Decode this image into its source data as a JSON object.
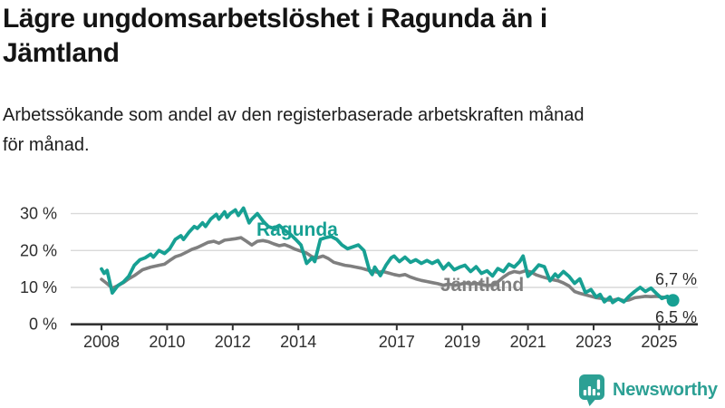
{
  "title": {
    "line1": "Lägre ungdomsarbetslöshet i Ragunda än i",
    "line2": "Jämtland"
  },
  "subtitle": {
    "line1": "Arbetssökande som andel av den registerbaserade arbetskraften månad",
    "line2": "för månad."
  },
  "branding": {
    "name": "Newsworthy",
    "icon": "newsworthy-speech-bubble-bar-chart"
  },
  "colors": {
    "ragunda_line": "#17a093",
    "jamtland_line": "#7f7f7f",
    "gridline": "#d9d9d9",
    "axis": "#333333",
    "title_text": "#141414",
    "tick_text": "#2e2e2e",
    "logo": "#2ca094",
    "background": "#ffffff"
  },
  "chart_data": {
    "type": "line",
    "title": "Lägre ungdomsarbetslöshet i Ragunda än i Jämtland",
    "subtitle": "Arbetssökande som andel av den registerbaserade arbetskraften månad för månad.",
    "xlabel": "",
    "ylabel": "",
    "unit": "%",
    "grid": "horizontal",
    "legend_position": "inline-labels",
    "xlim": [
      2007.6,
      2026.3
    ],
    "ylim": [
      0,
      33
    ],
    "x_ticks": [
      2008,
      2010,
      2012,
      2014,
      2017,
      2019,
      2021,
      2023,
      2025
    ],
    "y_ticks": [
      {
        "value": 0,
        "label": "0 %"
      },
      {
        "value": 10,
        "label": "10 %"
      },
      {
        "value": 20,
        "label": "20 %"
      },
      {
        "value": 30,
        "label": "30 %"
      }
    ],
    "series": [
      {
        "name": "Ragunda",
        "color": "#17a093",
        "end_label": "6,5 %",
        "end_value": 6.5,
        "end_marker": "dot",
        "points": [
          [
            2008.0,
            15.0
          ],
          [
            2008.08,
            13.8
          ],
          [
            2008.17,
            14.6
          ],
          [
            2008.33,
            8.5
          ],
          [
            2008.5,
            10.5
          ],
          [
            2008.67,
            11.5
          ],
          [
            2008.83,
            13.0
          ],
          [
            2009.0,
            16.0
          ],
          [
            2009.17,
            17.5
          ],
          [
            2009.33,
            18.0
          ],
          [
            2009.5,
            19.0
          ],
          [
            2009.58,
            18.2
          ],
          [
            2009.75,
            20.0
          ],
          [
            2009.92,
            19.2
          ],
          [
            2010.08,
            20.5
          ],
          [
            2010.25,
            23.0
          ],
          [
            2010.42,
            24.0
          ],
          [
            2010.5,
            23.0
          ],
          [
            2010.67,
            25.0
          ],
          [
            2010.83,
            26.5
          ],
          [
            2010.92,
            26.0
          ],
          [
            2011.08,
            27.5
          ],
          [
            2011.17,
            26.5
          ],
          [
            2011.33,
            28.5
          ],
          [
            2011.5,
            29.8
          ],
          [
            2011.58,
            28.5
          ],
          [
            2011.75,
            30.5
          ],
          [
            2011.83,
            29.0
          ],
          [
            2011.92,
            30.0
          ],
          [
            2012.08,
            31.0
          ],
          [
            2012.17,
            29.5
          ],
          [
            2012.33,
            31.5
          ],
          [
            2012.5,
            27.5
          ],
          [
            2012.58,
            28.5
          ],
          [
            2012.75,
            30.0
          ],
          [
            2012.92,
            28.0
          ],
          [
            2013.08,
            26.5
          ],
          [
            2013.25,
            26.0
          ],
          [
            2013.42,
            26.8
          ],
          [
            2013.58,
            25.5
          ],
          [
            2013.75,
            24.5
          ],
          [
            2013.92,
            23.0
          ],
          [
            2014.08,
            21.5
          ],
          [
            2014.25,
            16.5
          ],
          [
            2014.42,
            18.0
          ],
          [
            2014.5,
            17.0
          ],
          [
            2014.67,
            23.0
          ],
          [
            2014.83,
            23.5
          ],
          [
            2015.0,
            23.8
          ],
          [
            2015.17,
            23.0
          ],
          [
            2015.33,
            21.5
          ],
          [
            2015.5,
            20.5
          ],
          [
            2015.67,
            21.0
          ],
          [
            2015.83,
            21.5
          ],
          [
            2016.0,
            20.0
          ],
          [
            2016.17,
            14.5
          ],
          [
            2016.25,
            13.5
          ],
          [
            2016.33,
            15.5
          ],
          [
            2016.5,
            13.2
          ],
          [
            2016.67,
            16.0
          ],
          [
            2016.83,
            18.0
          ],
          [
            2016.92,
            18.5
          ],
          [
            2017.08,
            17.0
          ],
          [
            2017.25,
            18.2
          ],
          [
            2017.42,
            16.8
          ],
          [
            2017.58,
            17.5
          ],
          [
            2017.75,
            16.5
          ],
          [
            2017.92,
            17.3
          ],
          [
            2018.08,
            16.5
          ],
          [
            2018.25,
            17.3
          ],
          [
            2018.42,
            15.0
          ],
          [
            2018.58,
            16.5
          ],
          [
            2018.75,
            14.8
          ],
          [
            2018.92,
            15.5
          ],
          [
            2019.08,
            16.0
          ],
          [
            2019.25,
            14.3
          ],
          [
            2019.42,
            15.6
          ],
          [
            2019.58,
            13.8
          ],
          [
            2019.75,
            14.5
          ],
          [
            2019.92,
            13.1
          ],
          [
            2020.08,
            15.1
          ],
          [
            2020.25,
            14.3
          ],
          [
            2020.42,
            16.3
          ],
          [
            2020.58,
            15.5
          ],
          [
            2020.75,
            17.0
          ],
          [
            2020.85,
            18.5
          ],
          [
            2021.0,
            13.0
          ],
          [
            2021.17,
            14.5
          ],
          [
            2021.33,
            16.1
          ],
          [
            2021.5,
            15.6
          ],
          [
            2021.67,
            11.8
          ],
          [
            2021.83,
            13.6
          ],
          [
            2021.92,
            12.8
          ],
          [
            2022.08,
            14.3
          ],
          [
            2022.25,
            13.0
          ],
          [
            2022.42,
            11.1
          ],
          [
            2022.58,
            12.3
          ],
          [
            2022.75,
            8.6
          ],
          [
            2022.92,
            9.4
          ],
          [
            2023.08,
            7.4
          ],
          [
            2023.2,
            8.1
          ],
          [
            2023.33,
            6.1
          ],
          [
            2023.5,
            7.4
          ],
          [
            2023.58,
            5.9
          ],
          [
            2023.75,
            6.9
          ],
          [
            2023.92,
            6.1
          ],
          [
            2024.08,
            7.6
          ],
          [
            2024.25,
            8.9
          ],
          [
            2024.42,
            10.0
          ],
          [
            2024.58,
            8.9
          ],
          [
            2024.75,
            9.8
          ],
          [
            2024.92,
            8.3
          ],
          [
            2025.08,
            7.0
          ],
          [
            2025.25,
            7.6
          ],
          [
            2025.33,
            6.4
          ],
          [
            2025.42,
            6.5
          ]
        ]
      },
      {
        "name": "Jämtland",
        "color": "#7f7f7f",
        "end_label": "6,7 %",
        "end_value": 6.7,
        "end_marker": "none",
        "points": [
          [
            2008.0,
            12.2
          ],
          [
            2008.17,
            11.0
          ],
          [
            2008.33,
            9.8
          ],
          [
            2008.5,
            10.5
          ],
          [
            2008.67,
            11.3
          ],
          [
            2008.83,
            12.3
          ],
          [
            2009.0,
            13.2
          ],
          [
            2009.25,
            14.8
          ],
          [
            2009.5,
            15.5
          ],
          [
            2009.75,
            16.0
          ],
          [
            2009.92,
            16.3
          ],
          [
            2010.08,
            17.3
          ],
          [
            2010.25,
            18.3
          ],
          [
            2010.42,
            18.8
          ],
          [
            2010.58,
            19.5
          ],
          [
            2010.75,
            20.3
          ],
          [
            2010.92,
            20.8
          ],
          [
            2011.08,
            21.5
          ],
          [
            2011.25,
            22.2
          ],
          [
            2011.42,
            22.5
          ],
          [
            2011.58,
            22.0
          ],
          [
            2011.75,
            22.8
          ],
          [
            2011.92,
            23.0
          ],
          [
            2012.08,
            23.2
          ],
          [
            2012.25,
            23.5
          ],
          [
            2012.42,
            22.5
          ],
          [
            2012.58,
            21.5
          ],
          [
            2012.75,
            22.5
          ],
          [
            2012.92,
            22.7
          ],
          [
            2013.08,
            22.4
          ],
          [
            2013.25,
            21.8
          ],
          [
            2013.42,
            21.3
          ],
          [
            2013.58,
            21.6
          ],
          [
            2013.75,
            21.0
          ],
          [
            2013.92,
            20.3
          ],
          [
            2014.08,
            19.8
          ],
          [
            2014.25,
            19.3
          ],
          [
            2014.42,
            18.3
          ],
          [
            2014.58,
            18.0
          ],
          [
            2014.75,
            18.5
          ],
          [
            2014.92,
            17.8
          ],
          [
            2015.08,
            16.8
          ],
          [
            2015.25,
            16.4
          ],
          [
            2015.42,
            16.0
          ],
          [
            2015.58,
            15.8
          ],
          [
            2015.75,
            15.5
          ],
          [
            2015.92,
            15.2
          ],
          [
            2016.08,
            14.8
          ],
          [
            2016.25,
            14.4
          ],
          [
            2016.42,
            14.1
          ],
          [
            2016.58,
            14.3
          ],
          [
            2016.75,
            13.9
          ],
          [
            2016.92,
            13.5
          ],
          [
            2017.08,
            13.2
          ],
          [
            2017.25,
            13.5
          ],
          [
            2017.42,
            12.8
          ],
          [
            2017.58,
            12.3
          ],
          [
            2017.75,
            11.9
          ],
          [
            2017.92,
            11.6
          ],
          [
            2018.08,
            11.3
          ],
          [
            2018.25,
            11.0
          ],
          [
            2018.42,
            10.6
          ],
          [
            2018.58,
            10.9
          ],
          [
            2018.75,
            10.6
          ],
          [
            2018.92,
            10.8
          ],
          [
            2019.08,
            11.2
          ],
          [
            2019.25,
            10.9
          ],
          [
            2019.42,
            11.1
          ],
          [
            2019.58,
            10.8
          ],
          [
            2019.75,
            10.5
          ],
          [
            2019.92,
            10.7
          ],
          [
            2020.08,
            11.5
          ],
          [
            2020.25,
            12.8
          ],
          [
            2020.42,
            13.8
          ],
          [
            2020.58,
            14.3
          ],
          [
            2020.75,
            14.0
          ],
          [
            2020.92,
            14.5
          ],
          [
            2021.08,
            14.2
          ],
          [
            2021.25,
            13.4
          ],
          [
            2021.42,
            12.9
          ],
          [
            2021.58,
            12.5
          ],
          [
            2021.75,
            12.1
          ],
          [
            2021.92,
            11.8
          ],
          [
            2022.08,
            11.2
          ],
          [
            2022.25,
            10.4
          ],
          [
            2022.42,
            8.9
          ],
          [
            2022.58,
            8.4
          ],
          [
            2022.75,
            8.0
          ],
          [
            2022.92,
            7.6
          ],
          [
            2023.08,
            7.2
          ],
          [
            2023.25,
            7.0
          ],
          [
            2023.42,
            6.6
          ],
          [
            2023.58,
            6.5
          ],
          [
            2023.75,
            6.9
          ],
          [
            2023.92,
            6.4
          ],
          [
            2024.08,
            6.6
          ],
          [
            2024.25,
            7.2
          ],
          [
            2024.42,
            7.4
          ],
          [
            2024.58,
            7.6
          ],
          [
            2024.75,
            7.5
          ],
          [
            2024.92,
            7.6
          ],
          [
            2025.08,
            7.4
          ],
          [
            2025.25,
            7.2
          ],
          [
            2025.42,
            6.7
          ]
        ]
      }
    ]
  }
}
